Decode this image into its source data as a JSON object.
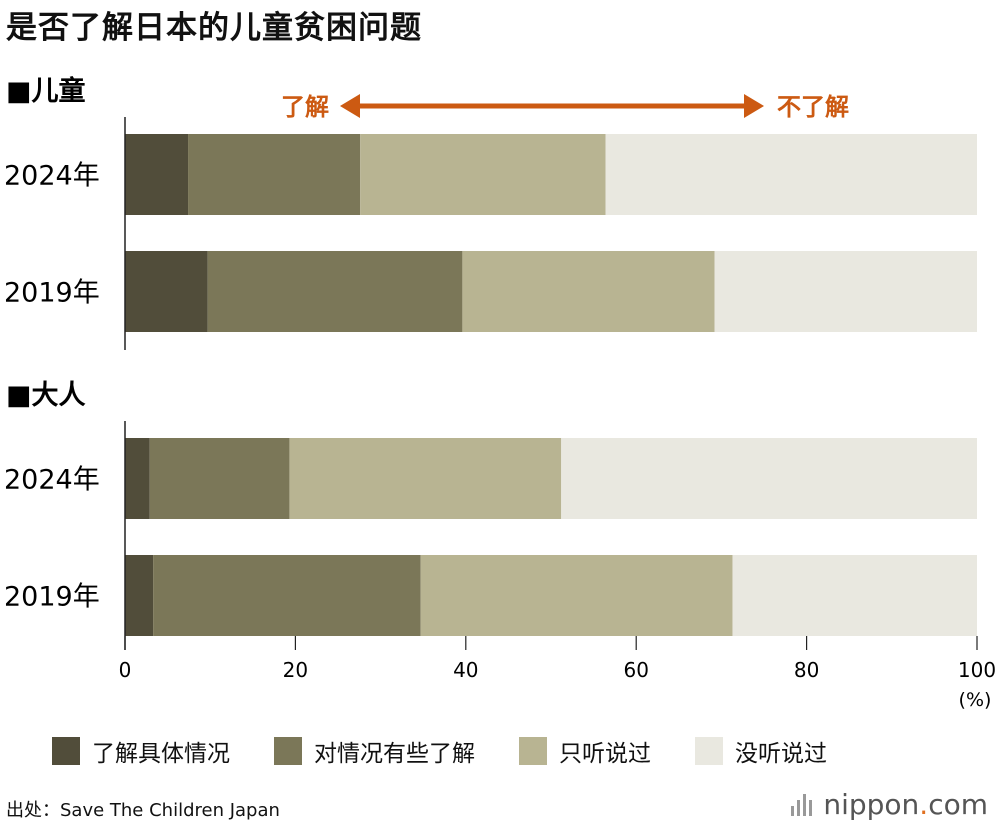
{
  "title": "是否了解日本的儿童贫困问题",
  "colors": {
    "c1": "#514d3a",
    "c2": "#7b7758",
    "c3": "#b8b492",
    "c4": "#e9e8e0",
    "accent": "#cc5a12"
  },
  "arrow": {
    "left_label": "了解",
    "right_label": "不了解"
  },
  "legend": [
    {
      "label": "了解具体情况",
      "color": "#514d3a"
    },
    {
      "label": "对情况有些了解",
      "color": "#7b7758"
    },
    {
      "label": "只听说过",
      "color": "#b8b492"
    },
    {
      "label": "没听说过",
      "color": "#e9e8e0"
    }
  ],
  "source": "出处：Save The Children Japan",
  "logo": {
    "name": "nippon",
    "dot": ".",
    "suffix": "com"
  },
  "chart_data": {
    "type": "bar",
    "orientation": "horizontal",
    "stacked": true,
    "title": "是否了解日本的儿童贫困问题",
    "xlim": [
      0,
      100
    ],
    "x_ticks": [
      "0",
      "20",
      "40",
      "60",
      "80",
      "100"
    ],
    "x_unit": "(%)",
    "series_names": [
      "了解具体情况",
      "对情况有些了解",
      "只听说过",
      "没听说过"
    ],
    "groups": [
      {
        "label": "■儿童",
        "rows": [
          {
            "label": "2024年",
            "values": [
              7.4,
              20.2,
              28.8,
              43.6
            ]
          },
          {
            "label": "2019年",
            "values": [
              9.7,
              29.9,
              29.6,
              30.8
            ]
          }
        ]
      },
      {
        "label": "■大人",
        "rows": [
          {
            "label": "2024年",
            "values": [
              2.9,
              16.4,
              31.9,
              48.8
            ]
          },
          {
            "label": "2019年",
            "values": [
              3.3,
              31.4,
              36.6,
              28.7
            ]
          }
        ]
      }
    ]
  }
}
